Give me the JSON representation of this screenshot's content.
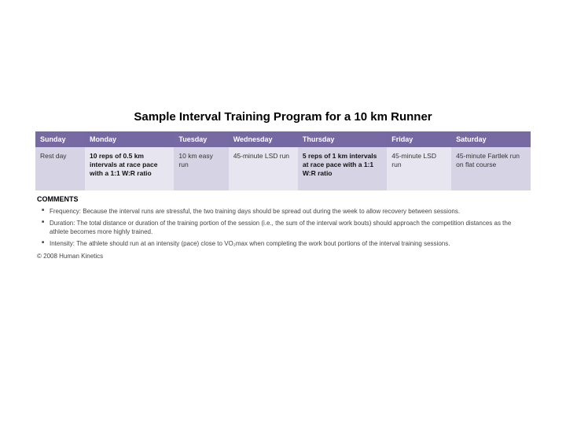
{
  "title": "Sample Interval Training Program for a 10 km Runner",
  "table": {
    "header_colors": [
      "#776aa3",
      "#7569a3",
      "#776aa3",
      "#7569a3",
      "#776aa3",
      "#7569a3",
      "#776aa3"
    ],
    "body_colors": [
      "#d6d3e5",
      "#e7e5ef",
      "#d6d3e5",
      "#e7e5ef",
      "#d6d3e5",
      "#e7e5ef",
      "#d6d3e5"
    ],
    "col_widths_pct": [
      10,
      18,
      11,
      14,
      18,
      13,
      16
    ],
    "columns": [
      "Sunday",
      "Monday",
      "Tuesday",
      "Wednesday",
      "Thursday",
      "Friday",
      "Saturday"
    ],
    "row": [
      {
        "text": "Rest day",
        "bold": false
      },
      {
        "text": "10 reps of 0.5 km intervals at race pace with a 1:1 W:R ratio",
        "bold": true
      },
      {
        "text": "10 km easy run",
        "bold": false
      },
      {
        "text": "45-minute LSD run",
        "bold": false
      },
      {
        "text": "5 reps of 1 km intervals at race pace with a 1:1 W:R ratio",
        "bold": true
      },
      {
        "text": "45-minute LSD run",
        "bold": false
      },
      {
        "text": "45-minute Fartlek run on flat course",
        "bold": false
      }
    ]
  },
  "comments_heading": "COMMENTS",
  "comments": [
    "Frequency: Because the interval runs are stressful, the two training days should be spread out during the week to allow recovery between sessions.",
    "Duration: The total distance or duration of the training portion of the session (i.e., the sum of the interval work bouts) should approach the competition distances as the athlete becomes more highly trained.",
    "Intensity: The athlete should run at an intensity (pace) close to VO₂max when completing the work bout portions of the interval training sessions."
  ],
  "copyright": "© 2008 Human Kinetics"
}
